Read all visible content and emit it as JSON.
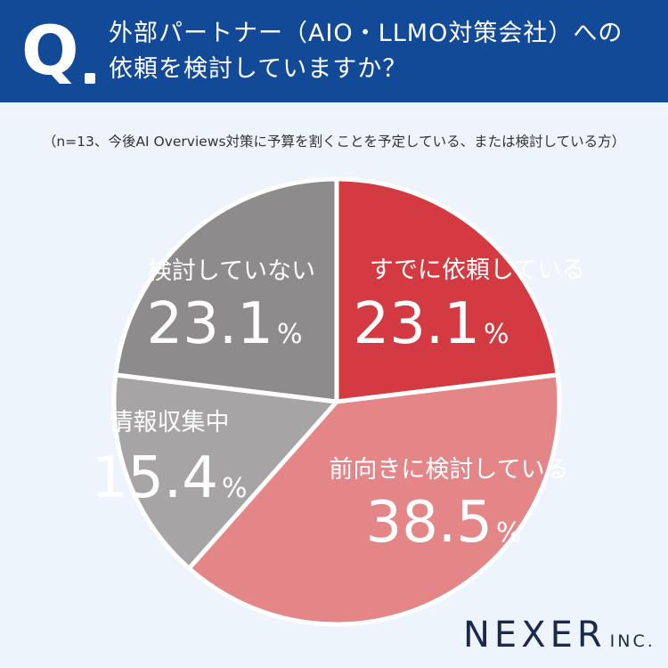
{
  "header": {
    "q_label": "Q",
    "question_line1": "外部パートナー（AIO・LLMO対策会社）への",
    "question_line2": "依頼を検討していますか？"
  },
  "note": "（n=13、今後AI Overviews対策に予算を割くことを予定している、または検討している方）",
  "logo": {
    "main": "NEXER",
    "sub": "INC."
  },
  "chart_data": {
    "type": "pie",
    "title": "",
    "unit": "%",
    "slices": [
      {
        "label": "すでに依頼している",
        "value": 23.1,
        "color": "#d33a41"
      },
      {
        "label": "前向きに検討している",
        "value": 38.5,
        "color": "#e48688"
      },
      {
        "label": "情報収集中",
        "value": 15.4,
        "color": "#a7a4a6"
      },
      {
        "label": "検討していない",
        "value": 23.1,
        "color": "#8e8b8c"
      }
    ]
  }
}
